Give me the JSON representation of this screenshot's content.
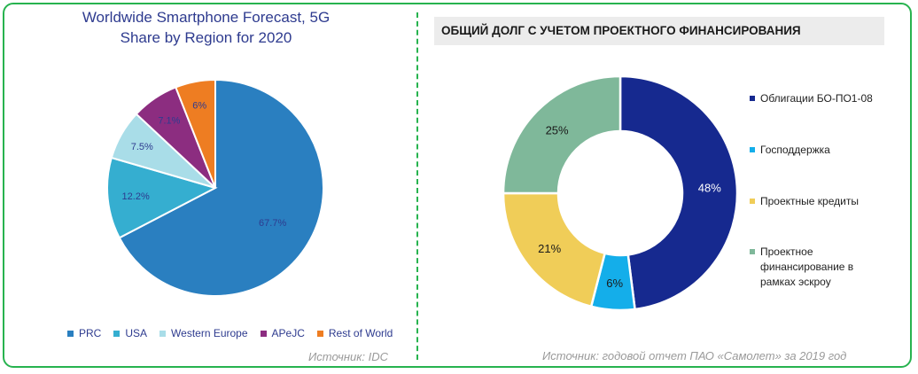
{
  "chart_data": [
    {
      "type": "pie",
      "title": "Worldwide Smartphone Forecast, 5G Share by Region for 2020",
      "title_lines": [
        "Worldwide Smartphone Forecast, 5G",
        "Share by Region for 2020"
      ],
      "categories": [
        "PRC",
        "USA",
        "Western Europe",
        "APeJC",
        "Rest of World"
      ],
      "values": [
        67.7,
        12.2,
        7.5,
        7.1,
        6
      ],
      "data_labels": [
        "67.7%",
        "12.2%",
        "7.5%",
        "7.1%",
        "6%"
      ],
      "colors": [
        "#2a7fc0",
        "#35aed0",
        "#a9dde8",
        "#8c2d80",
        "#ee7d22"
      ],
      "legend_position": "bottom",
      "source": "Источник: IDC"
    },
    {
      "type": "donut",
      "title": "ОБЩИЙ ДОЛГ С УЧЕТОМ ПРОЕКТНОГО ФИНАНСИРОВАНИЯ",
      "categories": [
        "Облигации БО-ПО1-08",
        "Господдержка",
        "Проектные кредиты",
        "Проектное финансирование в рамках эскроу"
      ],
      "values": [
        48,
        6,
        21,
        25
      ],
      "data_labels": [
        "48%",
        "6%",
        "21%",
        "25%"
      ],
      "colors": [
        "#16298f",
        "#14aeea",
        "#f0cd58",
        "#7fb89a"
      ],
      "label_colors": [
        "#ffffff",
        "#1a1a1a",
        "#1a1a1a",
        "#1a1a1a"
      ],
      "legend_position": "right",
      "source": "Источник: годовой отчет ПАО «Самолет» за 2019 год"
    }
  ]
}
